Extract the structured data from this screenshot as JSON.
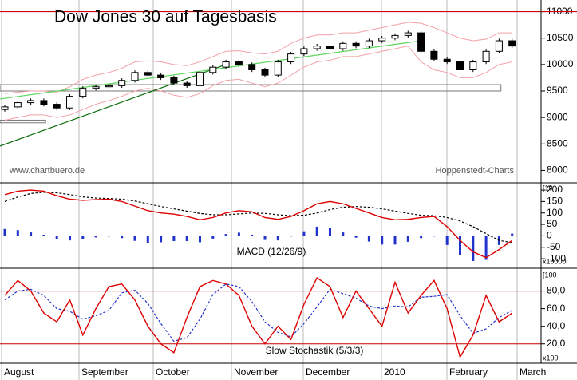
{
  "chart_data": [
    {
      "type": "candlestick",
      "title": "Dow Jones 30 auf Tagesbasis",
      "open": [
        9150,
        9200,
        9280,
        9320,
        9250,
        9180,
        9400,
        9550,
        9580,
        9600,
        9700,
        9850,
        9800,
        9750,
        9650,
        9600,
        9850,
        9950,
        10050,
        10000,
        9900,
        9800,
        10050,
        10200,
        10300,
        10350,
        10300,
        10400,
        10350,
        10450,
        10500,
        10550,
        10600,
        10250,
        10100,
        10050,
        9900,
        10050,
        10250,
        10450
      ],
      "high": [
        9240,
        9320,
        9360,
        9360,
        9290,
        9440,
        9590,
        9620,
        9640,
        9740,
        9890,
        9890,
        9840,
        9790,
        9690,
        9890,
        9990,
        10090,
        10090,
        10040,
        9940,
        10090,
        10240,
        10340,
        10390,
        10390,
        10440,
        10440,
        10490,
        10540,
        10590,
        10640,
        10640,
        10290,
        10140,
        10090,
        10090,
        10290,
        10490,
        10490
      ],
      "low": [
        9110,
        9160,
        9240,
        9210,
        9140,
        9140,
        9360,
        9510,
        9540,
        9560,
        9660,
        9760,
        9710,
        9610,
        9560,
        9560,
        9810,
        9910,
        9960,
        9860,
        9760,
        9760,
        10010,
        10160,
        10260,
        10260,
        10260,
        10310,
        10310,
        10410,
        10460,
        10510,
        10210,
        10060,
        10010,
        9860,
        9860,
        10010,
        10210,
        10310
      ],
      "close": [
        9200,
        9280,
        9320,
        9250,
        9180,
        9400,
        9550,
        9580,
        9600,
        9700,
        9850,
        9800,
        9750,
        9650,
        9600,
        9850,
        9950,
        10050,
        10000,
        9900,
        9800,
        10050,
        10200,
        10300,
        10350,
        10300,
        10400,
        10350,
        10450,
        10500,
        10550,
        10600,
        10250,
        10100,
        10050,
        9900,
        10050,
        10250,
        10450,
        10350
      ],
      "up_color": "#ffffff",
      "down_color": "#000000",
      "bands": {
        "color": "#f4a0a8",
        "upper": [
          9450,
          9480,
          9500,
          9500,
          9480,
          9580,
          9720,
          9800,
          9850,
          9930,
          10050,
          10070,
          10050,
          10000,
          9980,
          10050,
          10150,
          10250,
          10260,
          10220,
          10200,
          10250,
          10400,
          10500,
          10560,
          10560,
          10600,
          10600,
          10650,
          10700,
          10750,
          10800,
          10780,
          10700,
          10600,
          10500,
          10450,
          10480,
          10600,
          10600
        ],
        "lower": [
          8950,
          9000,
          9050,
          9050,
          9000,
          9050,
          9150,
          9250,
          9320,
          9400,
          9500,
          9550,
          9500,
          9420,
          9380,
          9450,
          9600,
          9700,
          9720,
          9650,
          9580,
          9650,
          9800,
          9950,
          10050,
          10080,
          10150,
          10150,
          10200,
          10250,
          10300,
          10350,
          10050,
          9900,
          9850,
          9750,
          9750,
          9850,
          10000,
          10050
        ]
      },
      "trendlines": [
        {
          "color": "#0a6e0a",
          "x": [
            0,
            17
          ],
          "y": [
            8460,
            10000
          ]
        },
        {
          "color": "#5cd65c",
          "x": [
            0,
            32
          ],
          "y": [
            9350,
            10450
          ]
        }
      ],
      "zones": [
        {
          "low": 9500,
          "high": 9620,
          "to": 39
        },
        {
          "low": 8900,
          "high": 8950,
          "to": 4
        }
      ],
      "hline": {
        "value": 11000,
        "color": "#cc0000"
      },
      "annotations": [
        "www.chartbuero.de",
        "Hoppenstedt-Charts"
      ],
      "ylim": [
        7780,
        11220
      ],
      "yticks": [
        11000,
        10500,
        10000,
        9500,
        9000,
        8500,
        8000
      ]
    },
    {
      "type": "macd",
      "label": "MACD (12/26/9)",
      "scale_top": "[10",
      "scale_bottom": "x10000",
      "series": [
        {
          "color": "#dd0000",
          "values": [
            180,
            195,
            200,
            195,
            175,
            160,
            155,
            158,
            160,
            150,
            130,
            110,
            100,
            95,
            85,
            70,
            80,
            100,
            110,
            105,
            80,
            72,
            85,
            110,
            140,
            150,
            140,
            120,
            100,
            80,
            70,
            72,
            80,
            85,
            40,
            -20,
            -70,
            -95,
            -60,
            -20
          ]
        },
        {
          "color": "#000000",
          "values": [
            150,
            170,
            185,
            190,
            188,
            180,
            170,
            165,
            163,
            160,
            152,
            140,
            128,
            118,
            108,
            98,
            92,
            92,
            96,
            100,
            98,
            92,
            88,
            90,
            100,
            115,
            125,
            128,
            125,
            118,
            108,
            98,
            90,
            88,
            80,
            65,
            40,
            10,
            -20,
            -30
          ]
        }
      ],
      "histogram": {
        "color": "#2233cc",
        "values": [
          30,
          25,
          15,
          5,
          -13,
          -20,
          -15,
          -7,
          -3,
          -10,
          -22,
          -30,
          -28,
          -23,
          -23,
          -28,
          -12,
          8,
          14,
          5,
          -18,
          -20,
          -3,
          20,
          40,
          35,
          15,
          -8,
          -25,
          -38,
          -38,
          -26,
          -10,
          -3,
          -40,
          -85,
          -110,
          -105,
          -40,
          10
        ]
      },
      "ylim": [
        -138,
        228
      ],
      "yticks": [
        200,
        150,
        100,
        50,
        0,
        -50,
        -100
      ]
    },
    {
      "type": "stochastic",
      "label": "Slow Stochastik (5/3/3)",
      "scale_top": "[100",
      "scale_bottom": "x100",
      "series": [
        {
          "color": "#dd0000",
          "values": [
            75,
            92,
            80,
            55,
            45,
            70,
            30,
            60,
            85,
            88,
            70,
            40,
            20,
            10,
            50,
            85,
            92,
            88,
            75,
            40,
            20,
            40,
            25,
            65,
            95,
            85,
            50,
            80,
            60,
            40,
            90,
            55,
            75,
            92,
            60,
            5,
            30,
            75,
            45,
            55
          ]
        },
        {
          "color": "#2233cc",
          "values": [
            70,
            80,
            82,
            75,
            60,
            57,
            48,
            52,
            58,
            78,
            81,
            66,
            43,
            23,
            27,
            48,
            76,
            88,
            85,
            68,
            45,
            33,
            28,
            43,
            62,
            82,
            77,
            72,
            63,
            60,
            63,
            62,
            73,
            74,
            76,
            52,
            32,
            37,
            50,
            58
          ]
        }
      ],
      "hlines": {
        "color": "#cc0000",
        "values": [
          80,
          20
        ]
      },
      "ylim": [
        -2,
        105
      ],
      "yticks": [
        {
          "value": 80,
          "label": "80,0"
        },
        {
          "value": 60,
          "label": "60,0"
        },
        {
          "value": 40,
          "label": "40,0"
        },
        {
          "value": 20,
          "label": "20,0"
        }
      ]
    }
  ],
  "x_axis": {
    "labels": [
      "August",
      "September",
      "October",
      "November",
      "December",
      "2010",
      "February",
      "March"
    ]
  }
}
